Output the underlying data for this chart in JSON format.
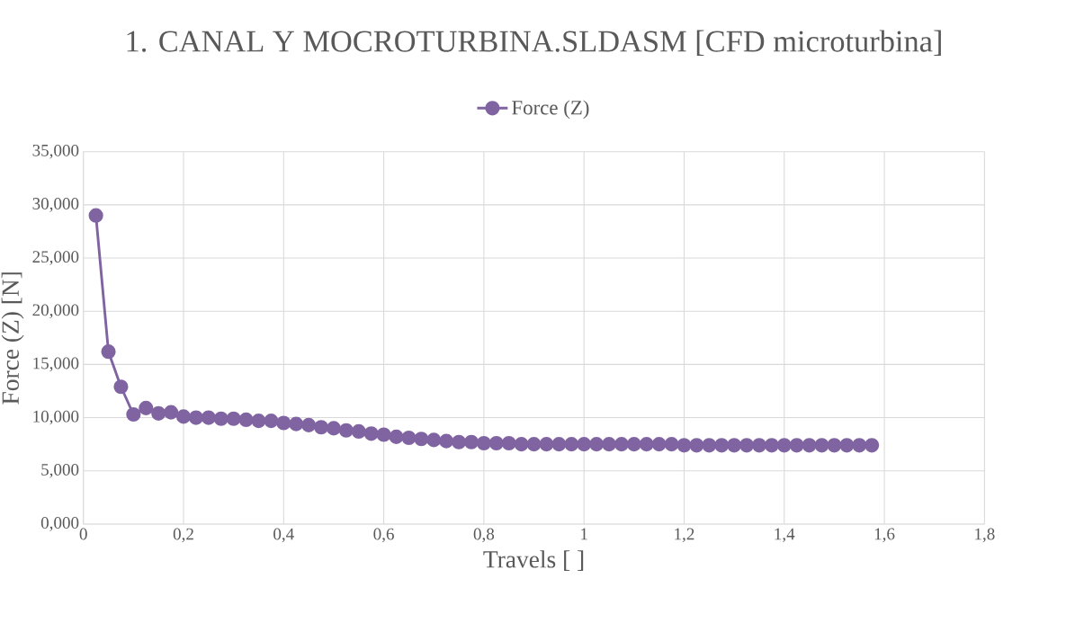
{
  "chart_data": {
    "type": "line",
    "title": "1. CANAL Y MOCROTURBINA.SLDASM [CFD microturbina]",
    "xlabel": "Travels [ ]",
    "ylabel": "Force (Z) [N]",
    "x": [
      0.025,
      0.05,
      0.075,
      0.1,
      0.125,
      0.15,
      0.175,
      0.2,
      0.225,
      0.25,
      0.275,
      0.3,
      0.325,
      0.35,
      0.375,
      0.4,
      0.425,
      0.45,
      0.475,
      0.5,
      0.525,
      0.55,
      0.575,
      0.6,
      0.625,
      0.65,
      0.675,
      0.7,
      0.725,
      0.75,
      0.775,
      0.8,
      0.825,
      0.85,
      0.875,
      0.9,
      0.925,
      0.95,
      0.975,
      1.0,
      1.025,
      1.05,
      1.075,
      1.1,
      1.125,
      1.15,
      1.175,
      1.2,
      1.225,
      1.25,
      1.275,
      1.3,
      1.325,
      1.35,
      1.375,
      1.4,
      1.425,
      1.45,
      1.475,
      1.5,
      1.525,
      1.55,
      1.575
    ],
    "series": [
      {
        "name": "Force (Z)",
        "color": "#8064a2",
        "values": [
          29.0,
          16.2,
          12.9,
          10.3,
          10.9,
          10.4,
          10.5,
          10.1,
          10.0,
          10.0,
          9.9,
          9.9,
          9.8,
          9.7,
          9.7,
          9.5,
          9.4,
          9.3,
          9.1,
          9.0,
          8.8,
          8.7,
          8.5,
          8.4,
          8.2,
          8.1,
          8.0,
          7.9,
          7.8,
          7.7,
          7.7,
          7.6,
          7.6,
          7.6,
          7.5,
          7.5,
          7.5,
          7.5,
          7.5,
          7.5,
          7.5,
          7.5,
          7.5,
          7.5,
          7.5,
          7.5,
          7.5,
          7.4,
          7.4,
          7.4,
          7.4,
          7.4,
          7.4,
          7.4,
          7.4,
          7.4,
          7.4,
          7.4,
          7.4,
          7.4,
          7.4,
          7.4,
          7.4
        ]
      }
    ],
    "xlim": [
      0,
      1.8
    ],
    "ylim": [
      0,
      35
    ],
    "xticks": [
      0,
      {
        "value": 0.2,
        "label": "0,2"
      },
      {
        "value": 0.4,
        "label": "0,4"
      },
      {
        "value": 0.6,
        "label": "0,6"
      },
      {
        "value": 0.8,
        "label": "0,8"
      },
      1,
      {
        "value": 1.2,
        "label": "1,2"
      },
      {
        "value": 1.4,
        "label": "1,4"
      },
      {
        "value": 1.6,
        "label": "1,6"
      },
      {
        "value": 1.8,
        "label": "1,8"
      }
    ],
    "yticks": [
      {
        "value": 0,
        "label": "0,000"
      },
      {
        "value": 5,
        "label": "5,000"
      },
      {
        "value": 10,
        "label": "10,000"
      },
      {
        "value": 15,
        "label": "15,000"
      },
      {
        "value": 20,
        "label": "20,000"
      },
      {
        "value": 25,
        "label": "25,000"
      },
      {
        "value": 30,
        "label": "30,000"
      },
      {
        "value": 35,
        "label": "35,000"
      }
    ],
    "grid": true,
    "legend": "top",
    "marker": "circle",
    "line_style": "solid"
  }
}
